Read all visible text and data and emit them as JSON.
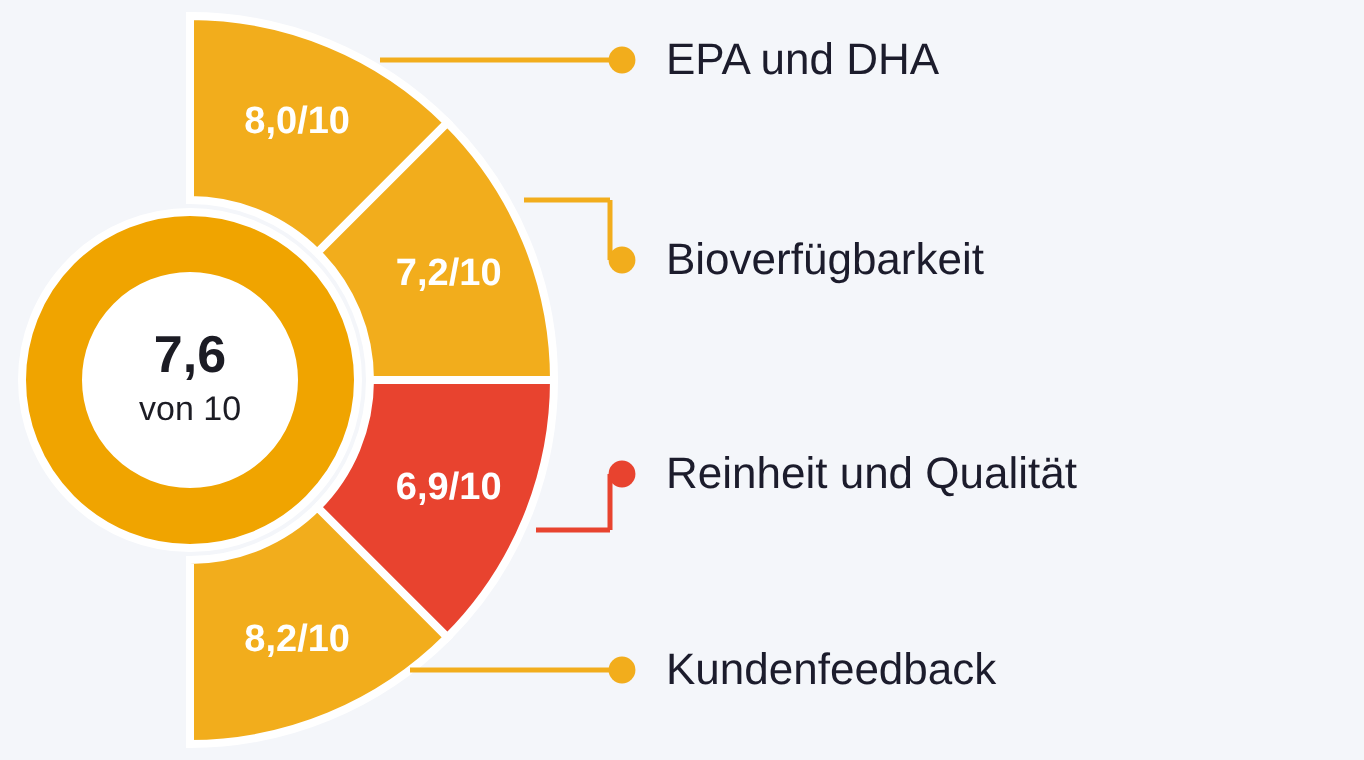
{
  "chart_data": {
    "type": "other",
    "categories": [
      "EPA und DHA",
      "Bioverfügbarkeit",
      "Reinheit und Qualität",
      "Kundenfeedback"
    ],
    "values": [
      8.0,
      7.2,
      6.9,
      8.2
    ],
    "value_labels": [
      "8,0/10",
      "7,2/10",
      "6,9/10",
      "8,2/10"
    ],
    "colors": [
      "#f2ad1c",
      "#f2ad1c",
      "#e8432f",
      "#f2ad1c"
    ],
    "annotations": [
      "7,6",
      "von 10"
    ]
  }
}
